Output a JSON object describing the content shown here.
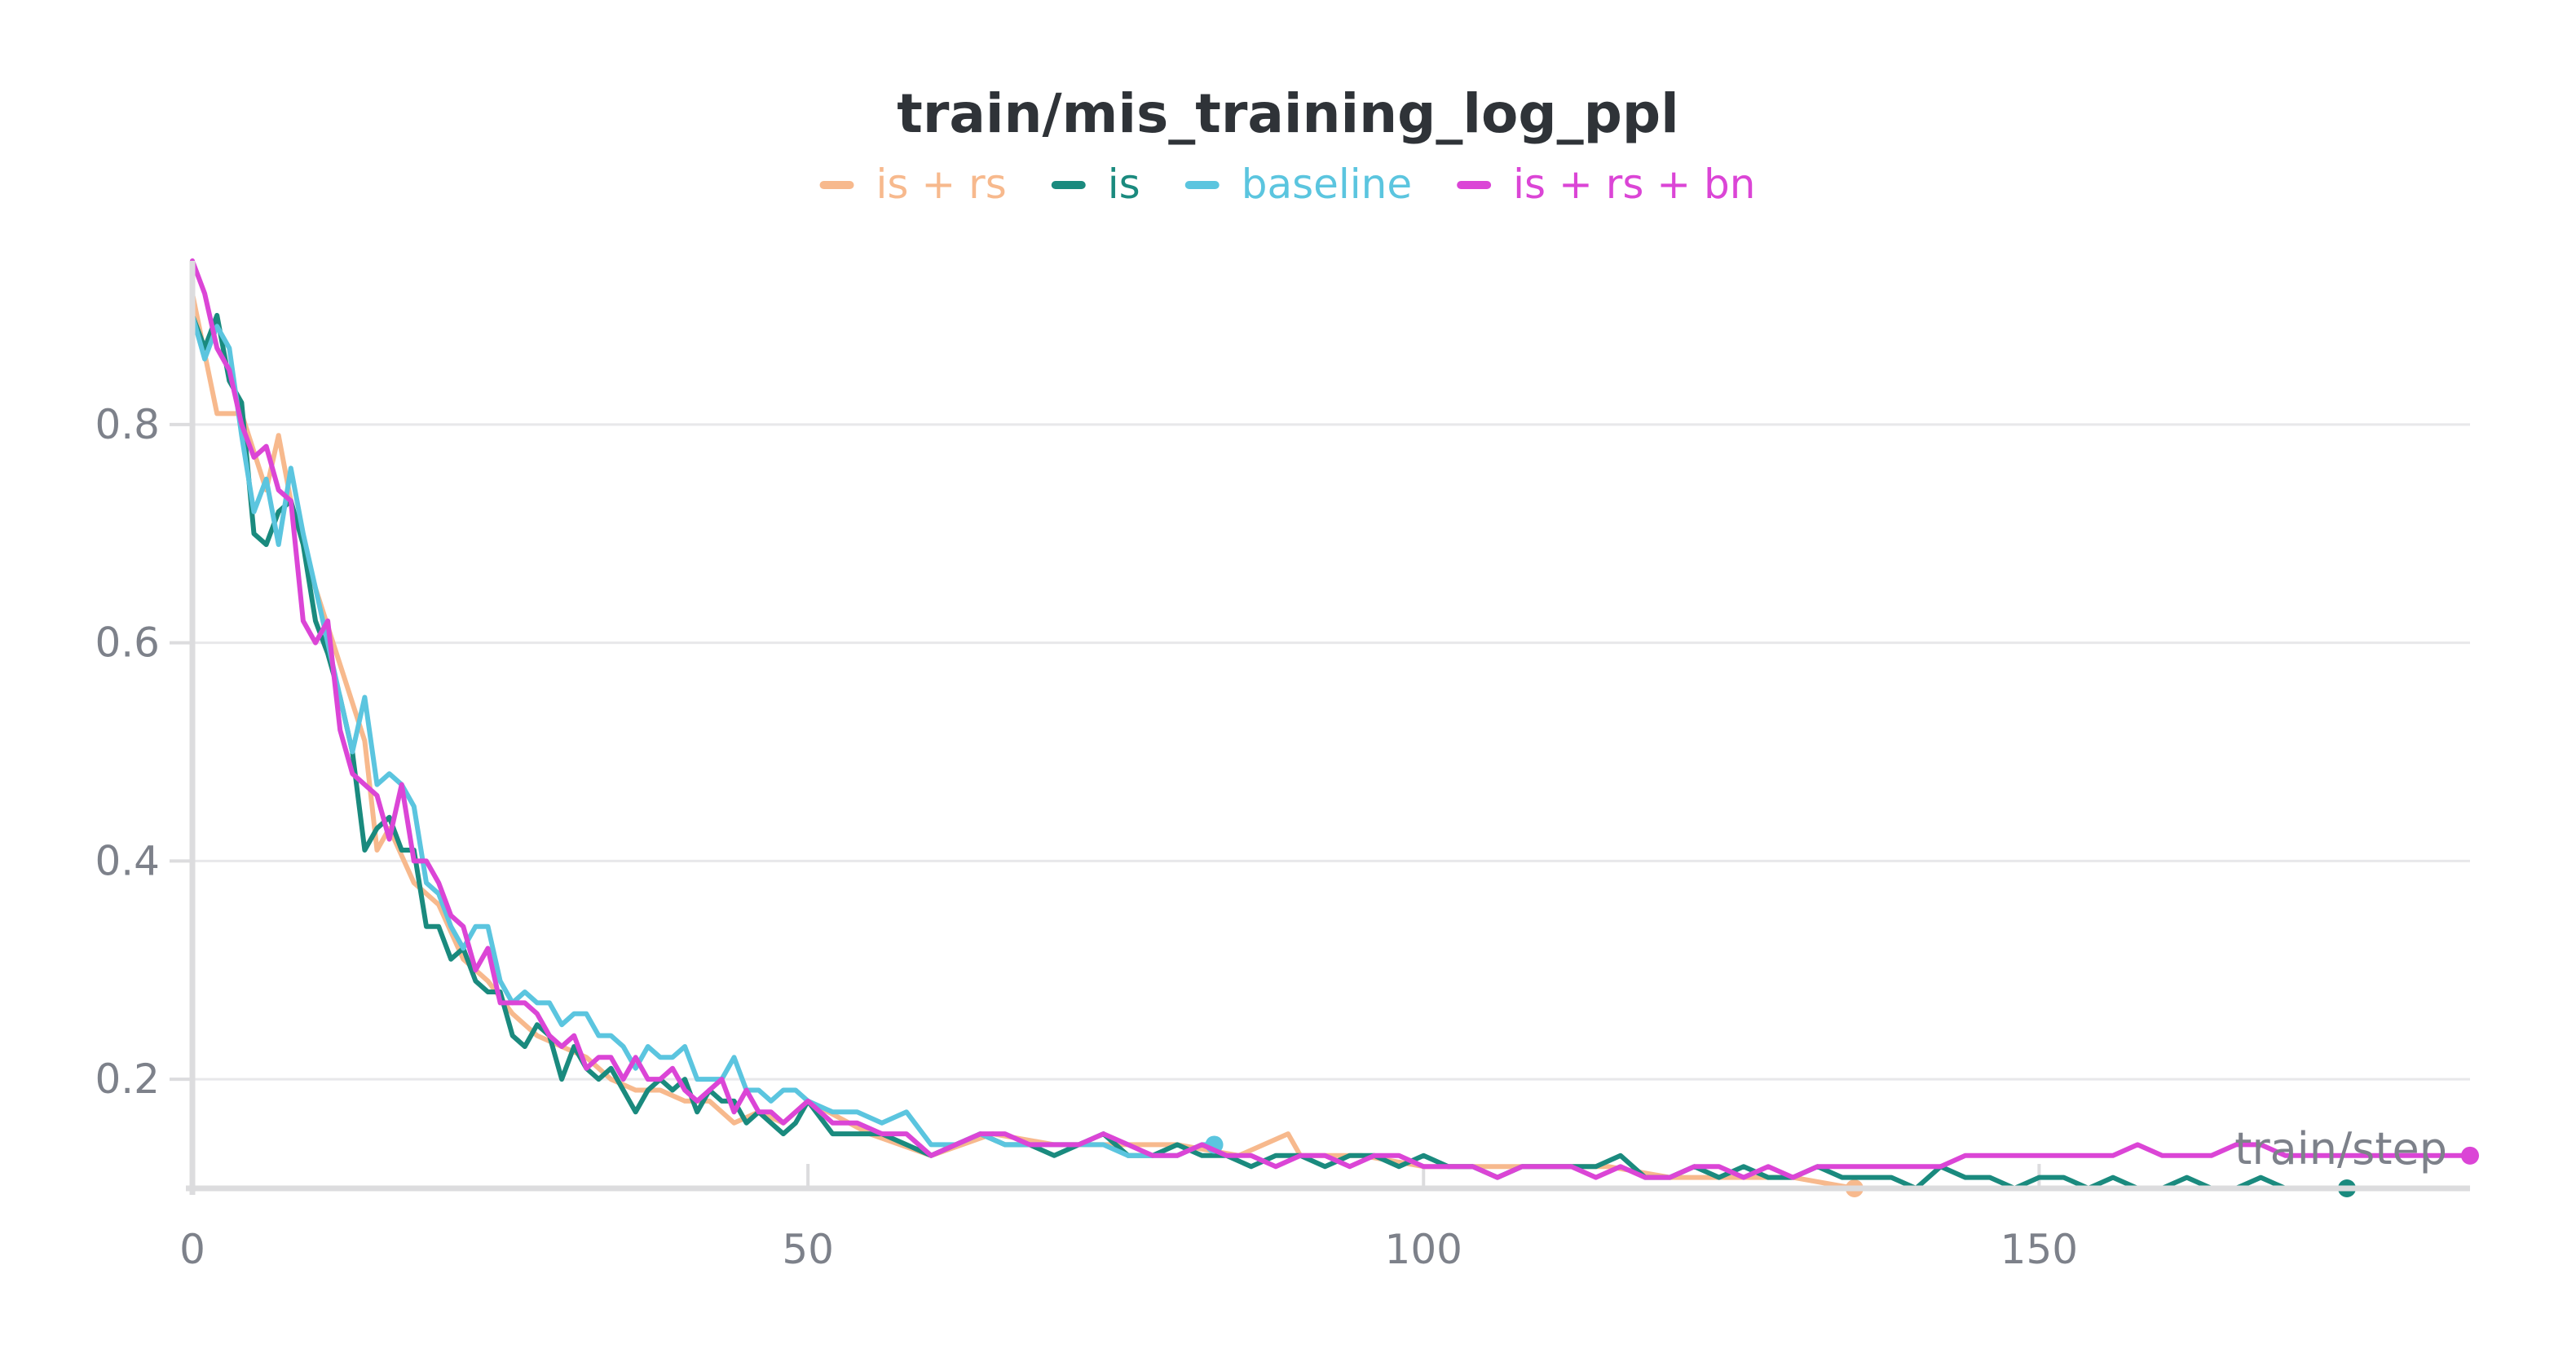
{
  "chart_data": {
    "type": "line",
    "title": "train/mis_training_log_ppl",
    "xlabel": "train/step",
    "ylabel": "",
    "xlim": [
      0,
      185
    ],
    "ylim": [
      0.1,
      0.95
    ],
    "xticks": [
      0,
      50,
      100,
      150
    ],
    "yticks": [
      0.2,
      0.4,
      0.6,
      0.8
    ],
    "grid": true,
    "legend_position": "top-center",
    "series": [
      {
        "name": "is + rs",
        "color": "#f7b98d",
        "x": [
          0,
          2,
          4,
          6,
          7,
          8,
          10,
          12,
          14,
          15,
          16,
          18,
          20,
          22,
          24,
          26,
          28,
          30,
          32,
          34,
          36,
          38,
          40,
          42,
          44,
          46,
          48,
          50,
          55,
          60,
          65,
          70,
          75,
          80,
          85,
          89,
          90,
          95,
          100,
          105,
          110,
          115,
          120,
          125,
          130,
          135
        ],
        "y": [
          0.92,
          0.81,
          0.81,
          0.74,
          0.79,
          0.73,
          0.65,
          0.58,
          0.51,
          0.41,
          0.43,
          0.38,
          0.36,
          0.31,
          0.29,
          0.26,
          0.24,
          0.23,
          0.22,
          0.2,
          0.19,
          0.19,
          0.18,
          0.18,
          0.16,
          0.17,
          0.16,
          0.18,
          0.15,
          0.13,
          0.15,
          0.14,
          0.14,
          0.14,
          0.13,
          0.15,
          0.13,
          0.13,
          0.12,
          0.12,
          0.12,
          0.12,
          0.11,
          0.11,
          0.11,
          0.1
        ]
      },
      {
        "name": "is",
        "color": "#1a8a7e",
        "x": [
          0,
          1,
          2,
          3,
          4,
          5,
          6,
          7,
          8,
          9,
          10,
          11,
          12,
          13,
          14,
          15,
          16,
          17,
          18,
          19,
          20,
          21,
          22,
          23,
          24,
          25,
          26,
          27,
          28,
          29,
          30,
          31,
          32,
          33,
          34,
          35,
          36,
          37,
          38,
          39,
          40,
          41,
          42,
          43,
          44,
          45,
          46,
          47,
          48,
          49,
          50,
          52,
          54,
          56,
          58,
          60,
          62,
          64,
          66,
          68,
          70,
          72,
          74,
          76,
          78,
          80,
          82,
          84,
          86,
          88,
          90,
          92,
          94,
          96,
          98,
          100,
          102,
          104,
          106,
          108,
          110,
          112,
          114,
          116,
          118,
          120,
          122,
          124,
          126,
          128,
          130,
          132,
          134,
          136,
          138,
          140,
          142,
          144,
          146,
          148,
          150,
          152,
          154,
          156,
          158,
          160,
          162,
          164,
          166,
          168,
          170,
          172,
          174,
          175
        ],
        "y": [
          0.9,
          0.87,
          0.9,
          0.84,
          0.82,
          0.7,
          0.69,
          0.72,
          0.73,
          0.69,
          0.62,
          0.59,
          0.55,
          0.5,
          0.41,
          0.43,
          0.44,
          0.41,
          0.41,
          0.34,
          0.34,
          0.31,
          0.32,
          0.29,
          0.28,
          0.28,
          0.24,
          0.23,
          0.25,
          0.24,
          0.2,
          0.23,
          0.21,
          0.2,
          0.21,
          0.19,
          0.17,
          0.19,
          0.2,
          0.19,
          0.2,
          0.17,
          0.19,
          0.18,
          0.18,
          0.16,
          0.17,
          0.16,
          0.15,
          0.16,
          0.18,
          0.15,
          0.15,
          0.15,
          0.14,
          0.13,
          0.14,
          0.15,
          0.14,
          0.14,
          0.13,
          0.14,
          0.15,
          0.13,
          0.13,
          0.14,
          0.13,
          0.13,
          0.12,
          0.13,
          0.13,
          0.12,
          0.13,
          0.13,
          0.12,
          0.13,
          0.12,
          0.12,
          0.11,
          0.12,
          0.12,
          0.12,
          0.12,
          0.13,
          0.11,
          0.11,
          0.12,
          0.11,
          0.12,
          0.11,
          0.11,
          0.12,
          0.11,
          0.11,
          0.11,
          0.1,
          0.12,
          0.11,
          0.11,
          0.1,
          0.11,
          0.11,
          0.1,
          0.11,
          0.1,
          0.1,
          0.11,
          0.1,
          0.1,
          0.11,
          0.1,
          0.1,
          0.1,
          0.1
        ]
      },
      {
        "name": "baseline",
        "color": "#5bc5df",
        "x": [
          0,
          1,
          2,
          3,
          4,
          5,
          6,
          7,
          8,
          9,
          10,
          11,
          12,
          13,
          14,
          15,
          16,
          17,
          18,
          19,
          20,
          21,
          22,
          23,
          24,
          25,
          26,
          27,
          28,
          29,
          30,
          31,
          32,
          33,
          34,
          35,
          36,
          37,
          38,
          39,
          40,
          41,
          42,
          43,
          44,
          45,
          46,
          47,
          48,
          49,
          50,
          52,
          54,
          56,
          58,
          60,
          62,
          64,
          66,
          68,
          70,
          72,
          74,
          76,
          78,
          80,
          82,
          83
        ],
        "y": [
          0.9,
          0.86,
          0.89,
          0.87,
          0.79,
          0.72,
          0.75,
          0.69,
          0.76,
          0.7,
          0.65,
          0.6,
          0.55,
          0.5,
          0.55,
          0.47,
          0.48,
          0.47,
          0.45,
          0.38,
          0.37,
          0.34,
          0.32,
          0.34,
          0.34,
          0.29,
          0.27,
          0.28,
          0.27,
          0.27,
          0.25,
          0.26,
          0.26,
          0.24,
          0.24,
          0.23,
          0.21,
          0.23,
          0.22,
          0.22,
          0.23,
          0.2,
          0.2,
          0.2,
          0.22,
          0.19,
          0.19,
          0.18,
          0.19,
          0.19,
          0.18,
          0.17,
          0.17,
          0.16,
          0.17,
          0.14,
          0.14,
          0.15,
          0.14,
          0.14,
          0.14,
          0.14,
          0.14,
          0.13,
          0.13,
          0.13,
          0.14,
          0.14
        ]
      },
      {
        "name": "is + rs + bn",
        "color": "#db45d6",
        "x": [
          0,
          1,
          2,
          3,
          4,
          5,
          6,
          7,
          8,
          9,
          10,
          11,
          12,
          13,
          14,
          15,
          16,
          17,
          18,
          19,
          20,
          21,
          22,
          23,
          24,
          25,
          26,
          27,
          28,
          29,
          30,
          31,
          32,
          33,
          34,
          35,
          36,
          37,
          38,
          39,
          40,
          41,
          42,
          43,
          44,
          45,
          46,
          47,
          48,
          49,
          50,
          52,
          54,
          56,
          58,
          60,
          62,
          64,
          66,
          68,
          70,
          72,
          74,
          76,
          78,
          80,
          82,
          84,
          86,
          88,
          90,
          92,
          94,
          96,
          98,
          100,
          102,
          104,
          106,
          108,
          110,
          112,
          114,
          116,
          118,
          120,
          122,
          124,
          126,
          128,
          130,
          132,
          134,
          136,
          138,
          140,
          142,
          144,
          146,
          148,
          150,
          152,
          154,
          156,
          158,
          160,
          162,
          164,
          166,
          168,
          170,
          172,
          174,
          176,
          178,
          180,
          182,
          184,
          185
        ],
        "y": [
          0.95,
          0.92,
          0.87,
          0.85,
          0.8,
          0.77,
          0.78,
          0.74,
          0.73,
          0.62,
          0.6,
          0.62,
          0.52,
          0.48,
          0.47,
          0.46,
          0.42,
          0.47,
          0.4,
          0.4,
          0.38,
          0.35,
          0.34,
          0.3,
          0.32,
          0.27,
          0.27,
          0.27,
          0.26,
          0.24,
          0.23,
          0.24,
          0.21,
          0.22,
          0.22,
          0.2,
          0.22,
          0.2,
          0.2,
          0.21,
          0.19,
          0.18,
          0.19,
          0.2,
          0.17,
          0.19,
          0.17,
          0.17,
          0.16,
          0.17,
          0.18,
          0.16,
          0.16,
          0.15,
          0.15,
          0.13,
          0.14,
          0.15,
          0.15,
          0.14,
          0.14,
          0.14,
          0.15,
          0.14,
          0.13,
          0.13,
          0.14,
          0.13,
          0.13,
          0.12,
          0.13,
          0.13,
          0.12,
          0.13,
          0.13,
          0.12,
          0.12,
          0.12,
          0.11,
          0.12,
          0.12,
          0.12,
          0.11,
          0.12,
          0.11,
          0.11,
          0.12,
          0.12,
          0.11,
          0.12,
          0.11,
          0.12,
          0.12,
          0.12,
          0.12,
          0.12,
          0.12,
          0.13,
          0.13,
          0.13,
          0.13,
          0.13,
          0.13,
          0.13,
          0.14,
          0.13,
          0.13,
          0.13,
          0.14,
          0.14,
          0.13,
          0.13,
          0.13,
          0.13,
          0.13,
          0.13,
          0.13,
          0.13,
          0.13
        ]
      }
    ]
  }
}
